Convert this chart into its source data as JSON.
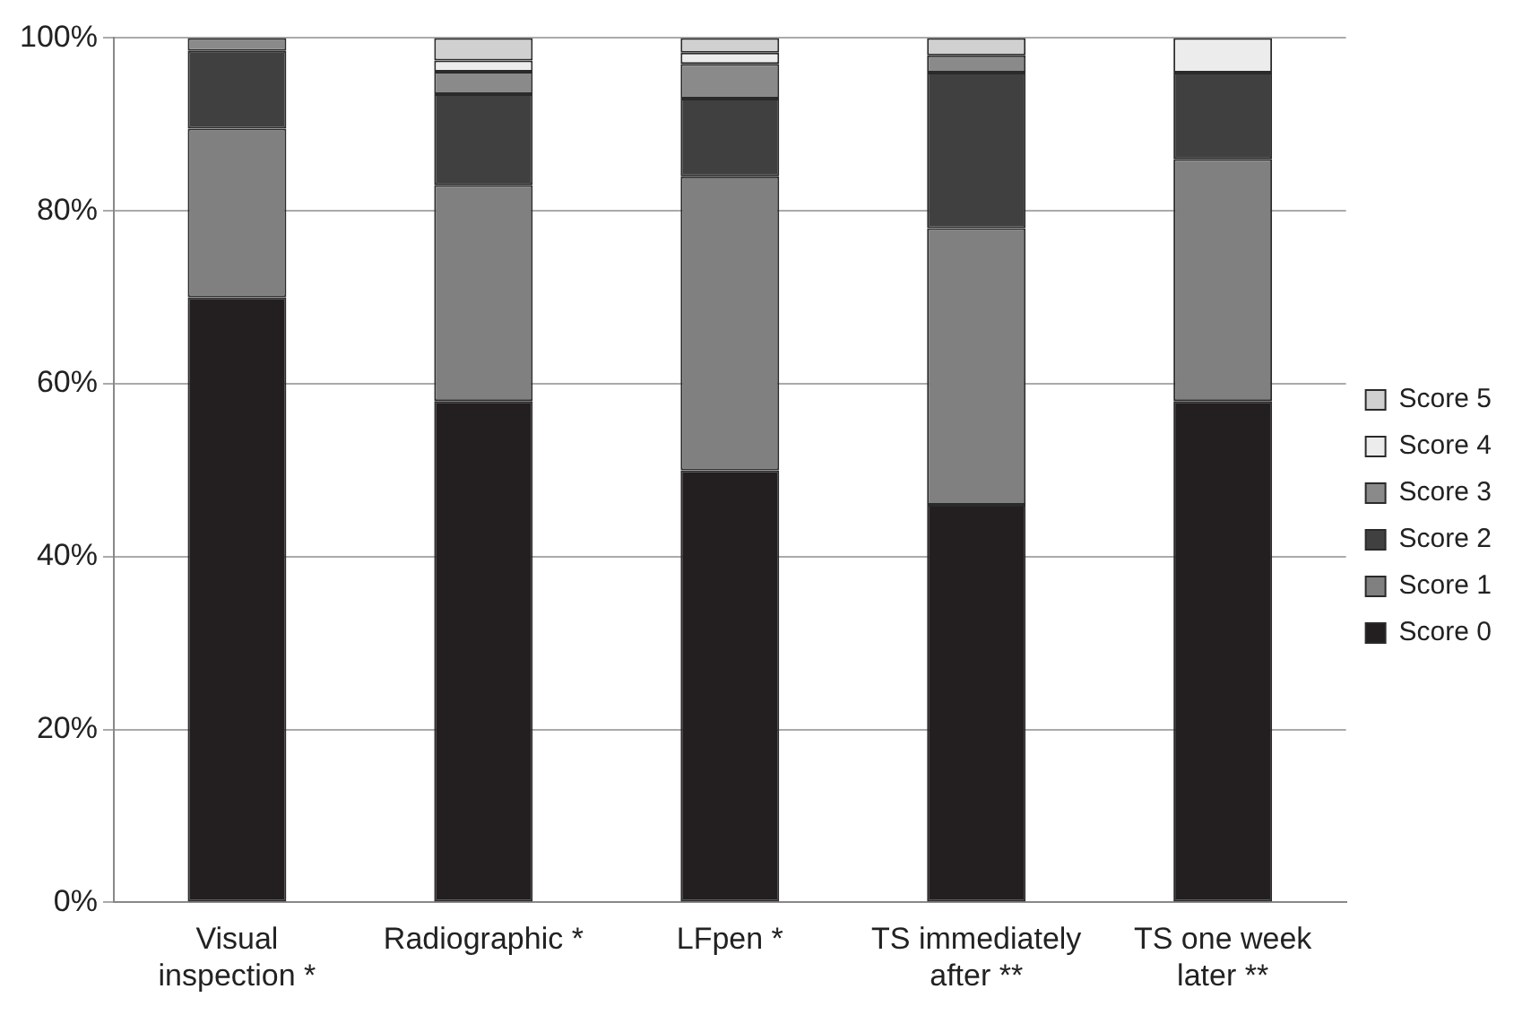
{
  "chart_data": {
    "type": "bar",
    "stacked": true,
    "categories": [
      "Visual inspection *",
      "Radiographic *",
      "LFpen *",
      "TS immediately after **",
      "TS one week later **"
    ],
    "series": [
      {
        "name": "Score 0",
        "color": "#231f20",
        "values": [
          70,
          58,
          50,
          46,
          58
        ]
      },
      {
        "name": "Score 1",
        "color": "#808081",
        "values": [
          19.5,
          25,
          34,
          32,
          28
        ]
      },
      {
        "name": "Score 2",
        "color": "#404040",
        "values": [
          9,
          10.5,
          9,
          18,
          10
        ]
      },
      {
        "name": "Score 3",
        "color": "#8a8a8a",
        "values": [
          1.5,
          2.6,
          4,
          2,
          0
        ]
      },
      {
        "name": "Score 4",
        "color": "#ececec",
        "values": [
          0,
          1.3,
          1.3,
          0,
          4
        ]
      },
      {
        "name": "Score 5",
        "color": "#d0d0d0",
        "values": [
          0,
          2.6,
          1.7,
          2,
          0
        ]
      }
    ],
    "ylim": [
      0,
      100
    ],
    "yticks": [
      {
        "value": 0,
        "label": "0%"
      },
      {
        "value": 20,
        "label": "20%"
      },
      {
        "value": 40,
        "label": "40%"
      },
      {
        "value": 60,
        "label": "60%"
      },
      {
        "value": 80,
        "label": "80%"
      },
      {
        "value": 100,
        "label": "100%"
      }
    ],
    "grid": "y",
    "legend": "right"
  }
}
